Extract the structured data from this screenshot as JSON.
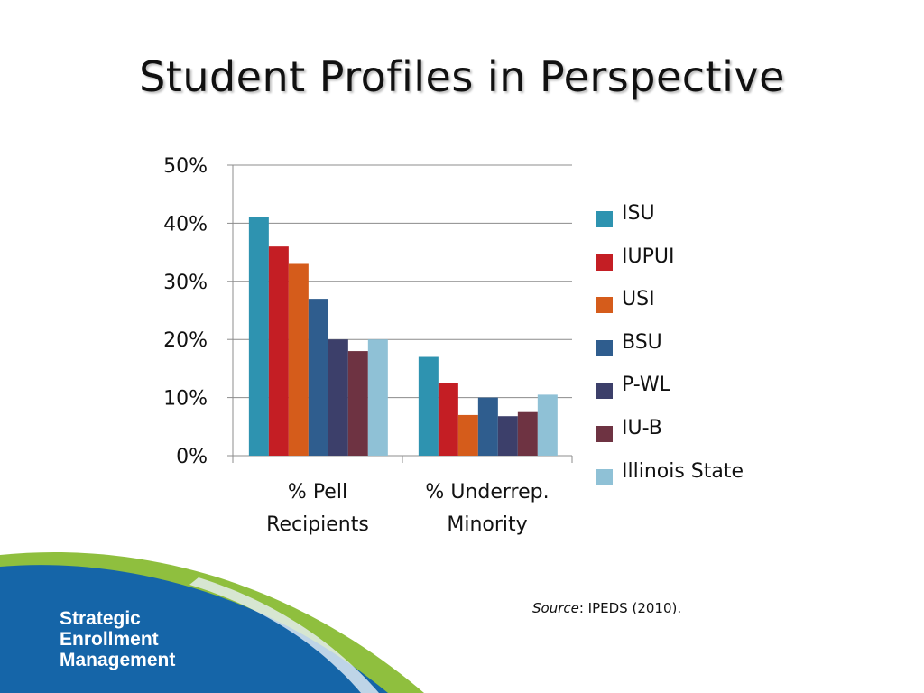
{
  "slide": {
    "title": "Student Profiles in Perspective",
    "source_label": "Source",
    "source_text": ":  IPEDS (2010).",
    "brand": [
      "Strategic",
      "Enrollment",
      "Management"
    ]
  },
  "colors": {
    "footer_blue": "#1565a8",
    "footer_green": "#8fbf3e"
  },
  "chart_data": {
    "type": "bar",
    "title": "",
    "xlabel": "",
    "ylabel": "",
    "ylim": [
      0,
      0.5
    ],
    "yticks": [
      "0%",
      "10%",
      "20%",
      "30%",
      "40%",
      "50%"
    ],
    "grid": true,
    "legend_position": "right",
    "categories": [
      [
        "% Pell",
        "Recipients"
      ],
      [
        "% Underrep.",
        "Minority"
      ]
    ],
    "series": [
      {
        "name": "ISU",
        "color": "#2e93b0",
        "values": [
          0.41,
          0.17
        ]
      },
      {
        "name": "IUPUI",
        "color": "#c41e24",
        "values": [
          0.36,
          0.125
        ]
      },
      {
        "name": "USI",
        "color": "#d55c1b",
        "values": [
          0.33,
          0.07
        ]
      },
      {
        "name": "BSU",
        "color": "#2f5d8e",
        "values": [
          0.27,
          0.1
        ]
      },
      {
        "name": "P-WL",
        "color": "#3c3f6a",
        "values": [
          0.2,
          0.068
        ]
      },
      {
        "name": "IU-B",
        "color": "#6e3342",
        "values": [
          0.18,
          0.075
        ]
      },
      {
        "name": "Illinois State",
        "color": "#8fc1d6",
        "values": [
          0.2,
          0.105
        ]
      }
    ]
  }
}
